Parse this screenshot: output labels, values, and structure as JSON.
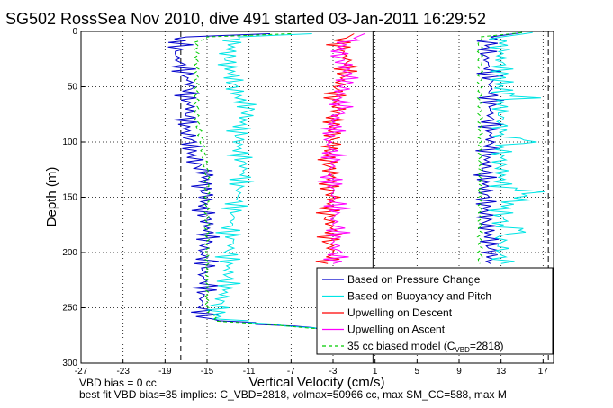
{
  "chart_data": {
    "type": "line",
    "title": "SG502 RossSea Nov 2010, dive 491 started 03-Jan-2011 16:29:52",
    "xlabel": "Vertical Velocity (cm/s)",
    "ylabel": "Depth (m)",
    "xlim": [
      -27,
      18
    ],
    "ylim": [
      0,
      300
    ],
    "y_reversed": true,
    "grid": true,
    "xticks": [
      -27,
      -23,
      -19,
      -15,
      -11,
      -7,
      -3,
      1,
      5,
      9,
      13,
      17
    ],
    "yticks": [
      0,
      50,
      100,
      150,
      200,
      250,
      300
    ],
    "reference_lines_x": [
      -17.5,
      0.8,
      17.5
    ],
    "legend_position": "bottom-right",
    "legend": [
      {
        "label": "Based on Pressure Change",
        "color": "#0000cc",
        "style": "solid"
      },
      {
        "label": "Based on Buoyancy and Pitch",
        "color": "#00e5e5",
        "style": "solid"
      },
      {
        "label": "Upwelling on Descent",
        "color": "#ff0000",
        "style": "solid"
      },
      {
        "label": "Upwelling on Ascent",
        "color": "#ff00ff",
        "style": "solid"
      },
      {
        "label": "35 cc biased model (C",
        "sub": "VBD",
        "suffix": "=2818)",
        "color": "#00cc00",
        "style": "dashed"
      }
    ],
    "series": [
      {
        "name": "Based on Pressure Change (descent)",
        "color": "#0000cc",
        "depth": [
          2,
          5,
          10,
          20,
          30,
          40,
          50,
          60,
          70,
          80,
          90,
          100,
          110,
          120,
          130,
          140,
          150,
          160,
          170,
          180,
          190,
          200,
          210,
          220,
          230,
          240,
          250,
          260,
          265,
          268,
          270
        ],
        "velocity": [
          -9,
          -17,
          -17.5,
          -18,
          -17.5,
          -17,
          -16.5,
          -17,
          -16.5,
          -17,
          -17,
          -16.5,
          -16.5,
          -16,
          -15,
          -15.5,
          -15,
          -15.5,
          -15,
          -15,
          -15,
          -15.5,
          -15,
          -15.5,
          -15,
          -15.5,
          -15.5,
          -15,
          -10,
          -5,
          -3
        ]
      },
      {
        "name": "Based on Buoyancy and Pitch (descent)",
        "color": "#00e5e5",
        "depth": [
          2,
          5,
          10,
          20,
          30,
          40,
          50,
          60,
          70,
          80,
          90,
          100,
          110,
          120,
          130,
          140,
          150,
          160,
          170,
          180,
          190,
          200,
          210,
          220,
          230,
          240,
          250,
          260,
          265,
          268,
          270
        ],
        "velocity": [
          -5,
          -12,
          -12.5,
          -13,
          -13,
          -12.5,
          -12.5,
          -12,
          -11,
          -11.5,
          -12,
          -12,
          -12,
          -11.5,
          -11.5,
          -12,
          -12,
          -12.5,
          -12.5,
          -13,
          -12.5,
          -13,
          -13,
          -13,
          -13,
          -13.5,
          -14,
          -14,
          -9,
          -5,
          -3
        ]
      },
      {
        "name": "35 cc biased model (descent)",
        "color": "#00cc00",
        "dashed": true,
        "depth": [
          2,
          5,
          10,
          30,
          50,
          80,
          100,
          130,
          150,
          180,
          200,
          220,
          250,
          262,
          266,
          270
        ],
        "velocity": [
          -7,
          -15,
          -16,
          -16,
          -16,
          -16,
          -15.5,
          -15,
          -15,
          -15,
          -15,
          -15,
          -15,
          -14,
          -8,
          -3
        ]
      },
      {
        "name": "Upwelling on Descent",
        "color": "#ff0000",
        "depth": [
          2,
          10,
          20,
          30,
          40,
          50,
          60,
          70,
          80,
          90,
          100,
          110,
          120,
          130,
          140,
          150,
          160,
          170,
          180,
          190,
          200,
          210
        ],
        "velocity": [
          -1,
          -2.5,
          -2,
          -1.5,
          -2,
          -2.5,
          -3,
          -2.5,
          -3,
          -3,
          -3,
          -3.5,
          -3.5,
          -3,
          -3.5,
          -3,
          -3.5,
          -3.5,
          -3,
          -3.5,
          -3,
          -3.5
        ]
      },
      {
        "name": "Upwelling on Ascent",
        "color": "#ff00ff",
        "depth": [
          2,
          10,
          20,
          30,
          40,
          50,
          60,
          70,
          80,
          90,
          100,
          110,
          120,
          130,
          140,
          150,
          160,
          170,
          180,
          190,
          200,
          210
        ],
        "velocity": [
          0,
          -2,
          -2.5,
          -2,
          -1.5,
          -2,
          -2.5,
          -2,
          -3,
          -3,
          -3.5,
          -3,
          -3,
          -3.5,
          -3,
          -3,
          -2.5,
          -3,
          -2.5,
          -3,
          -2.5,
          -3
        ]
      },
      {
        "name": "Based on Pressure Change (ascent)",
        "color": "#0000cc",
        "depth": [
          1,
          5,
          20,
          40,
          60,
          80,
          100,
          120,
          150,
          170,
          190,
          210
        ],
        "velocity": [
          15,
          12,
          11.5,
          12,
          12,
          12,
          12,
          11.5,
          11.5,
          11.5,
          12,
          12
        ]
      },
      {
        "name": "Based on Buoyancy and Pitch (ascent)",
        "color": "#00e5e5",
        "depth": [
          1,
          5,
          20,
          40,
          55,
          60,
          62,
          70,
          95,
          100,
          103,
          120,
          140,
          145,
          160,
          170,
          175,
          180,
          185,
          200,
          210
        ],
        "velocity": [
          16,
          13,
          13,
          13,
          13,
          16,
          13,
          13,
          13,
          16,
          13,
          13,
          13,
          16,
          13,
          13,
          13,
          15,
          13,
          13,
          13
        ]
      },
      {
        "name": "35 cc biased model (ascent)",
        "color": "#00cc00",
        "dashed": true,
        "depth": [
          1,
          5,
          20,
          50,
          80,
          110,
          150,
          180,
          210
        ],
        "velocity": [
          15,
          11,
          11,
          11,
          11,
          11,
          11,
          11,
          11
        ]
      }
    ]
  },
  "footer": {
    "line1": "VBD bias = 0 cc",
    "line2": "best fit VBD bias=35 implies: C_VBD=2818, volmax=50966 cc, max SM_CC=588, max M"
  }
}
